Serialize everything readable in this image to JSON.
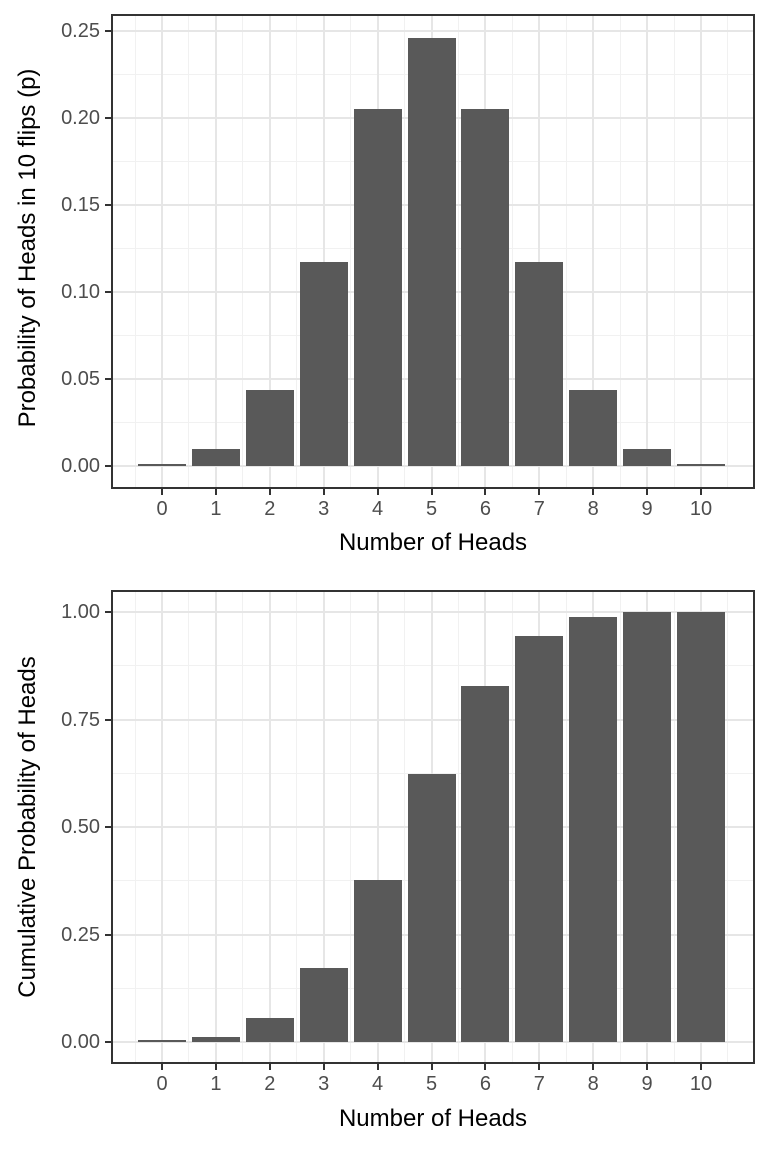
{
  "page": {
    "background": "#ffffff",
    "description": "Two stacked ggplot-style bar charts of a binomial(10, 0.5) distribution"
  },
  "colors": {
    "bar_fill": "#595959",
    "panel_border": "#333333",
    "grid_major": "#e6e6e6",
    "grid_minor": "#f1f1f1",
    "tick_mark": "#333333",
    "tick_label": "#4d4d4d",
    "axis_title": "#000000",
    "panel_background": "#ffffff"
  },
  "chart_data": [
    {
      "type": "bar",
      "title": "",
      "xlabel": "Number of Heads",
      "ylabel": "Probability of Heads in 10 flips (p)",
      "categories": [
        "0",
        "1",
        "2",
        "3",
        "4",
        "5",
        "6",
        "7",
        "8",
        "9",
        "10"
      ],
      "values": [
        0.000977,
        0.009766,
        0.043945,
        0.117188,
        0.205078,
        0.246094,
        0.205078,
        0.117188,
        0.043945,
        0.009766,
        0.000977
      ],
      "ylim": [
        0,
        0.25
      ],
      "yticks": {
        "values": [
          0,
          0.05,
          0.1,
          0.15,
          0.2,
          0.25
        ],
        "labels": [
          "0.00",
          "0.05",
          "0.10",
          "0.15",
          "0.20",
          "0.25"
        ]
      },
      "grid": "major and minor gridlines, light grey on white",
      "legend": "none"
    },
    {
      "type": "bar",
      "title": "",
      "xlabel": "Number of Heads",
      "ylabel": "Cumulative Probability of Heads",
      "categories": [
        "0",
        "1",
        "2",
        "3",
        "4",
        "5",
        "6",
        "7",
        "8",
        "9",
        "10"
      ],
      "values": [
        0.000977,
        0.010742,
        0.054688,
        0.171875,
        0.376953,
        0.623047,
        0.828125,
        0.945313,
        0.989258,
        0.999023,
        1.0
      ],
      "ylim": [
        0,
        1.0
      ],
      "yticks": {
        "values": [
          0,
          0.25,
          0.5,
          0.75,
          1.0
        ],
        "labels": [
          "0.00",
          "0.25",
          "0.50",
          "0.75",
          "1.00"
        ]
      },
      "grid": "major and minor gridlines, light grey on white",
      "legend": "none"
    }
  ]
}
